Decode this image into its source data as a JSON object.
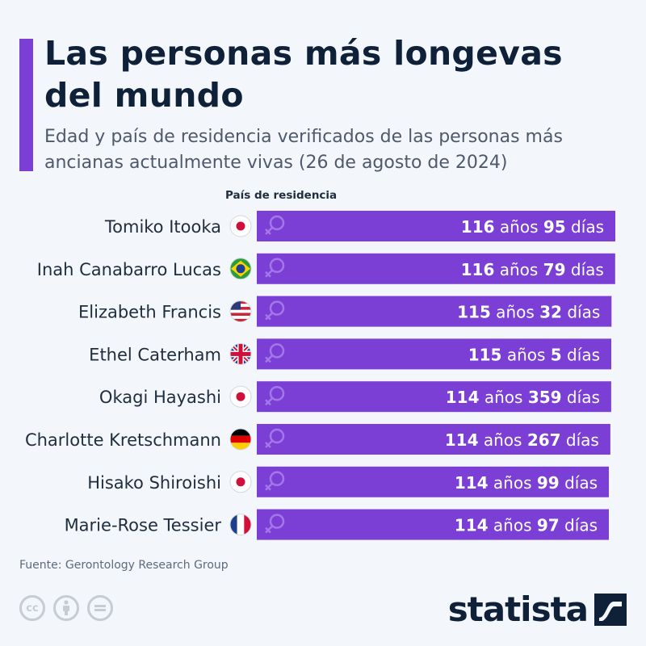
{
  "header": {
    "title": "Las personas más longevas del mundo",
    "subtitle": "Edad y país de residencia verificados de las personas más ancianas actualmente vivas (26 de agosto de 2024)"
  },
  "chart_data": {
    "type": "bar",
    "orientation": "horizontal",
    "column_header": "País de residencia",
    "unit_labels": {
      "years": "años",
      "days": "días"
    },
    "bar_color": "#7b3fd6",
    "categories": [
      "Tomiko Itooka",
      "Inah Canabarro Lucas",
      "Elizabeth Francis",
      "Ethel Caterham",
      "Okagi Hayashi",
      "Charlotte Kretschmann",
      "Hisako Shiroishi",
      "Marie-Rose Tessier"
    ],
    "countries": [
      "japan-flag-icon",
      "brazil-flag-icon",
      "usa-flag-icon",
      "uk-flag-icon",
      "japan-flag-icon",
      "germany-flag-icon",
      "japan-flag-icon",
      "france-flag-icon"
    ],
    "years": [
      116,
      116,
      115,
      115,
      114,
      114,
      114,
      114
    ],
    "days": [
      95,
      79,
      32,
      5,
      359,
      267,
      99,
      97
    ],
    "gender_icon": "female-symbol-icon",
    "grid": false
  },
  "footer": {
    "source": "Fuente: Gerontology Research Group",
    "brand": "statista",
    "license_icons": [
      "cc-icon",
      "by-icon",
      "nd-icon"
    ]
  }
}
